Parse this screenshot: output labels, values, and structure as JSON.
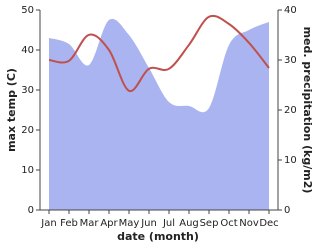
{
  "chart_data": {
    "type": "line-area",
    "x_label": "date (month)",
    "y_label": "max temp (C)",
    "y2_label": "med. precipitation (kg/m2)",
    "categories": [
      "Jan",
      "Feb",
      "Mar",
      "Apr",
      "May",
      "Jun",
      "Jul",
      "Aug",
      "Sep",
      "Oct",
      "Nov",
      "Dec"
    ],
    "series": [
      {
        "name": "max temp",
        "type": "line",
        "color": "#c0504d",
        "values": [
          37.5,
          37.3,
          43.8,
          40,
          29.8,
          35.3,
          35.3,
          41.3,
          48.3,
          46.5,
          41.8,
          35.5
        ]
      },
      {
        "name": "med. precipitation",
        "type": "area",
        "axis": "y2",
        "color": "#aab4f0",
        "values": [
          34.4,
          33.2,
          29,
          38,
          35,
          28.4,
          21.6,
          20.8,
          20.4,
          33,
          36,
          37.6
        ]
      }
    ],
    "ylim": [
      0,
      50
    ],
    "yticks": [
      0,
      10,
      20,
      30,
      40,
      50
    ],
    "y2lim": [
      0,
      40
    ],
    "y2ticks": [
      0,
      10,
      20,
      30,
      40
    ],
    "grid": false
  }
}
